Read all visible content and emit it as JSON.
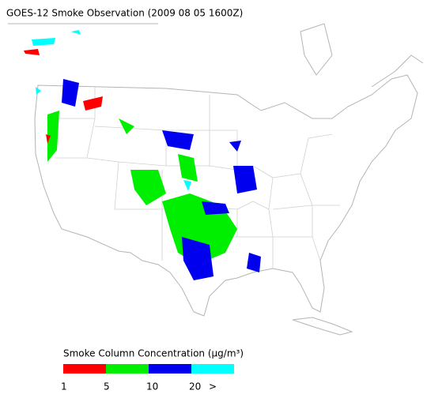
{
  "title": "GOES-12 Smoke Observation (2009 08 05  1600Z)",
  "legend": {
    "title": "Smoke Column Concentration (μg/m³)",
    "colors": [
      "#ff0000",
      "#00ee00",
      "#0000ee",
      "#00ffff"
    ],
    "ticks": [
      1,
      5,
      10,
      20,
      ">"
    ]
  }
}
